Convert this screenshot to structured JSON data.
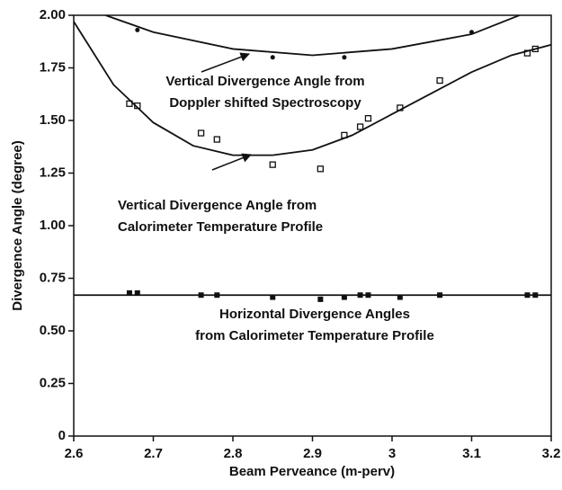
{
  "chart_data": {
    "type": "scatter",
    "xlabel": "Beam Perveance (m-perv)",
    "ylabel": "Divergence Angle (degree)",
    "xlim": [
      2.6,
      3.2
    ],
    "xticks": [
      2.6,
      2.7,
      2.8,
      2.9,
      3.0,
      3.1,
      3.2
    ],
    "ylim": [
      0,
      2.0
    ],
    "yticks": [
      0,
      0.25,
      {
        "value": 0.5,
        "label": "0.50"
      },
      0.75,
      {
        "value": 1.0,
        "label": "1.00"
      },
      1.25,
      {
        "value": 1.5,
        "label": "1.50"
      },
      1.75,
      {
        "value": 2.0,
        "label": "2.00"
      }
    ],
    "series": [
      {
        "style": "dot",
        "color": "#111111",
        "x": [
          2.68,
          2.85,
          2.94,
          3.1
        ],
        "values": [
          1.93,
          1.8,
          1.8,
          1.92
        ]
      },
      {
        "style": "line",
        "color": "#111111",
        "x": [
          2.64,
          2.7,
          2.8,
          2.9,
          3.0,
          3.1,
          3.16
        ],
        "values": [
          2.0,
          1.92,
          1.84,
          1.81,
          1.84,
          1.91,
          2.0
        ]
      },
      {
        "style": "open-square",
        "color": "#111111",
        "x": [
          2.67,
          2.68,
          2.76,
          2.78,
          2.85,
          2.91,
          2.94,
          2.96,
          2.97,
          3.01,
          3.06,
          3.17,
          3.18
        ],
        "values": [
          1.58,
          1.57,
          1.44,
          1.41,
          1.29,
          1.27,
          1.43,
          1.47,
          1.51,
          1.56,
          1.69,
          1.82,
          1.84
        ]
      },
      {
        "style": "line",
        "color": "#111111",
        "x": [
          2.6,
          2.65,
          2.7,
          2.75,
          2.8,
          2.85,
          2.9,
          2.95,
          3.0,
          3.05,
          3.1,
          3.15,
          3.2
        ],
        "values": [
          1.97,
          1.67,
          1.49,
          1.38,
          1.335,
          1.335,
          1.36,
          1.43,
          1.53,
          1.63,
          1.73,
          1.81,
          1.86
        ]
      },
      {
        "style": "square",
        "color": "#111111",
        "x": [
          2.67,
          2.68,
          2.76,
          2.78,
          2.85,
          2.91,
          2.94,
          2.96,
          2.97,
          3.01,
          3.06,
          3.17,
          3.18
        ],
        "values": [
          0.68,
          0.68,
          0.67,
          0.67,
          0.66,
          0.65,
          0.66,
          0.67,
          0.67,
          0.66,
          0.67,
          0.67,
          0.67
        ]
      },
      {
        "style": "line",
        "color": "#111111",
        "x": [
          2.6,
          3.2
        ],
        "values": [
          0.67,
          0.67
        ]
      }
    ],
    "annotations": [
      [
        "Vertical Divergence Angle from",
        "Doppler shifted Spectroscopy"
      ],
      [
        "Vertical Divergence Angle from",
        "Calorimeter Temperature Profile"
      ],
      [
        "Horizontal Divergence Angles",
        "from Calorimeter Temperature Profile"
      ]
    ]
  }
}
